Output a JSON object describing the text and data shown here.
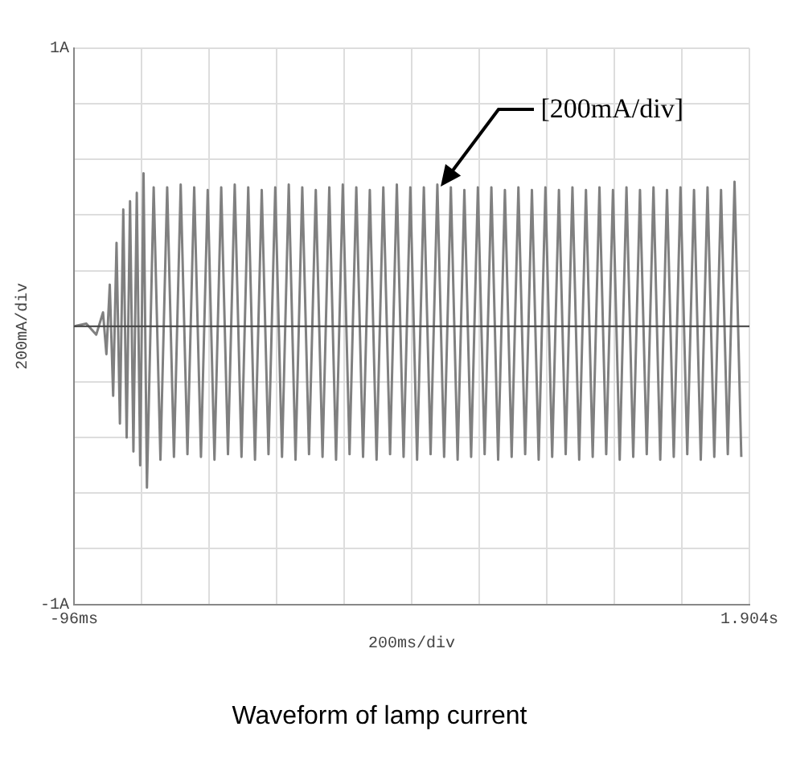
{
  "chart_data": {
    "type": "line",
    "title": "Waveform of lamp current",
    "xlabel": "200ms/div",
    "ylabel": "200mA/div",
    "x": [
      -96,
      -60,
      -30,
      -10,
      0,
      10,
      20,
      30,
      40,
      50,
      60,
      70,
      80,
      90,
      100,
      110,
      120,
      140,
      160,
      180,
      200,
      220,
      240,
      260,
      280,
      300,
      320,
      340,
      360,
      380,
      400,
      420,
      440,
      460,
      480,
      500,
      520,
      540,
      560,
      580,
      600,
      620,
      640,
      660,
      680,
      700,
      720,
      740,
      760,
      780,
      800,
      820,
      840,
      860,
      880,
      900,
      920,
      940,
      960,
      980,
      1000,
      1020,
      1040,
      1060,
      1080,
      1100,
      1120,
      1140,
      1160,
      1180,
      1200,
      1220,
      1240,
      1260,
      1280,
      1300,
      1320,
      1340,
      1360,
      1380,
      1400,
      1420,
      1440,
      1460,
      1480,
      1500,
      1520,
      1540,
      1560,
      1580,
      1600,
      1620,
      1640,
      1660,
      1680,
      1700,
      1720,
      1740,
      1760,
      1780,
      1800,
      1820,
      1840,
      1860,
      1880
    ],
    "series": [
      {
        "color": "#808080",
        "values": [
          0,
          0.01,
          -0.03,
          0.05,
          -0.1,
          0.15,
          -0.25,
          0.3,
          -0.35,
          0.42,
          -0.4,
          0.45,
          -0.45,
          0.48,
          -0.5,
          0.55,
          -0.58,
          0.5,
          -0.48,
          0.5,
          -0.47,
          0.51,
          -0.46,
          0.5,
          -0.47,
          0.49,
          -0.48,
          0.5,
          -0.46,
          0.51,
          -0.47,
          0.5,
          -0.48,
          0.49,
          -0.46,
          0.5,
          -0.47,
          0.51,
          -0.48,
          0.5,
          -0.46,
          0.49,
          -0.47,
          0.5,
          -0.48,
          0.51,
          -0.46,
          0.5,
          -0.47,
          0.49,
          -0.48,
          0.5,
          -0.46,
          0.51,
          -0.47,
          0.5,
          -0.48,
          0.5,
          -0.46,
          0.51,
          -0.47,
          0.5,
          -0.48,
          0.49,
          -0.47,
          0.5,
          -0.46,
          0.5,
          -0.48,
          0.49,
          -0.47,
          0.5,
          -0.46,
          0.49,
          -0.48,
          0.5,
          -0.47,
          0.49,
          -0.46,
          0.5,
          -0.48,
          0.49,
          -0.47,
          0.5,
          -0.46,
          0.49,
          -0.48,
          0.5,
          -0.47,
          0.49,
          -0.46,
          0.5,
          -0.48,
          0.49,
          -0.47,
          0.5,
          -0.46,
          0.49,
          -0.48,
          0.5,
          -0.47,
          0.49,
          -0.46,
          0.52,
          -0.47
        ]
      }
    ],
    "xlim": [
      -96,
      1904
    ],
    "xticks": [
      {
        "value": -96,
        "label": "-96ms"
      },
      {
        "value": 104,
        "label": null
      },
      {
        "value": 304,
        "label": null
      },
      {
        "value": 504,
        "label": null
      },
      {
        "value": 704,
        "label": null
      },
      {
        "value": 904,
        "label": null
      },
      {
        "value": 1104,
        "label": null
      },
      {
        "value": 1304,
        "label": null
      },
      {
        "value": 1504,
        "label": null
      },
      {
        "value": 1704,
        "label": null
      },
      {
        "value": 1904,
        "label": "1.904s"
      }
    ],
    "ylim": [
      -1,
      1
    ],
    "yticks": [
      {
        "value": -1,
        "label": "-1A"
      },
      {
        "value": -0.8,
        "label": null
      },
      {
        "value": -0.6,
        "label": null
      },
      {
        "value": -0.4,
        "label": null
      },
      {
        "value": -0.2,
        "label": null
      },
      {
        "value": 0,
        "label": null
      },
      {
        "value": 0.2,
        "label": null
      },
      {
        "value": 0.4,
        "label": null
      },
      {
        "value": 0.6,
        "label": null
      },
      {
        "value": 0.8,
        "label": null
      },
      {
        "value": 1,
        "label": "1A"
      }
    ],
    "ref_lines": [
      {
        "axis": "y",
        "value": 0,
        "color": "#404040"
      }
    ],
    "annotations": [
      {
        "text": "[200mA/div]",
        "x": 991,
        "y": 0.5
      }
    ],
    "grid": true,
    "legend": false,
    "marker": "none",
    "line_style": "solid"
  }
}
